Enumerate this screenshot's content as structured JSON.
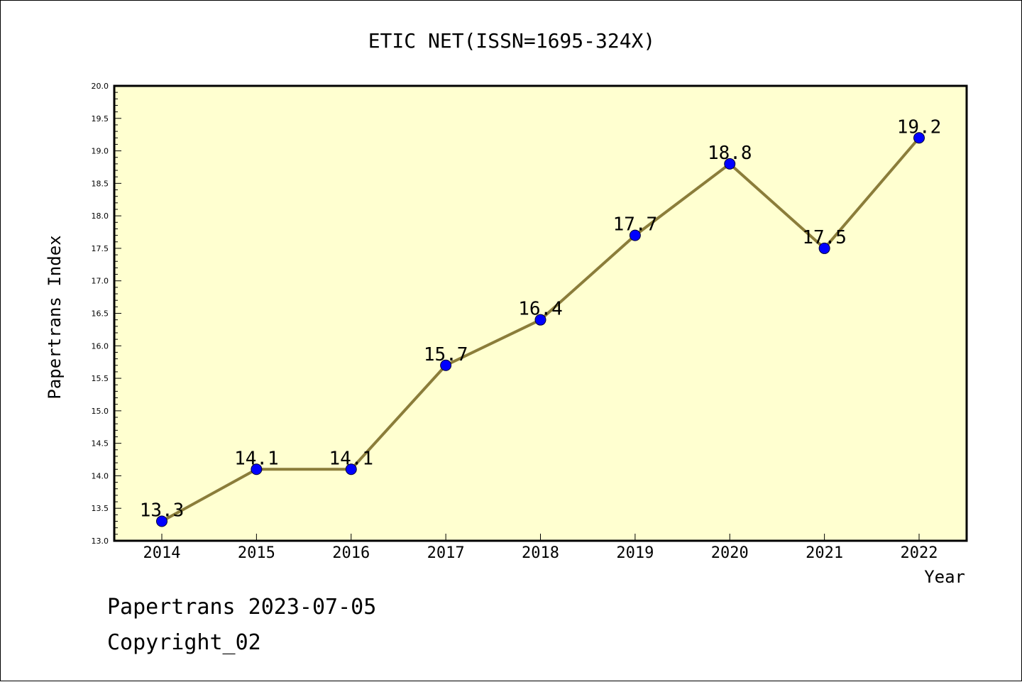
{
  "chart_data": {
    "type": "line",
    "title": "ETIC NET(ISSN=1695-324X)",
    "xlabel": "Year",
    "ylabel": "Papertrans Index",
    "x": [
      "2014",
      "2015",
      "2016",
      "2017",
      "2018",
      "2019",
      "2020",
      "2021",
      "2022"
    ],
    "values": [
      13.3,
      14.1,
      14.1,
      15.7,
      16.4,
      17.7,
      18.8,
      17.5,
      19.2
    ],
    "data_labels": [
      "13.3",
      "14.1",
      "14.1",
      "15.7",
      "16.4",
      "17.7",
      "18.8",
      "17.5",
      "19.2"
    ],
    "ylim": [
      13.0,
      20.0
    ],
    "yticks": [
      "13.0",
      "13.5",
      "14.0",
      "14.5",
      "15.0",
      "15.5",
      "16.0",
      "16.5",
      "17.0",
      "17.5",
      "18.0",
      "18.5",
      "19.0",
      "19.5",
      "20.0"
    ],
    "grid": false,
    "colors": {
      "plot_background": "#ffffd0",
      "line": "#8b7d3a",
      "marker": "#0000ff"
    }
  },
  "footer": {
    "line1": "Papertrans 2023-07-05",
    "line2": "Copyright_02"
  }
}
